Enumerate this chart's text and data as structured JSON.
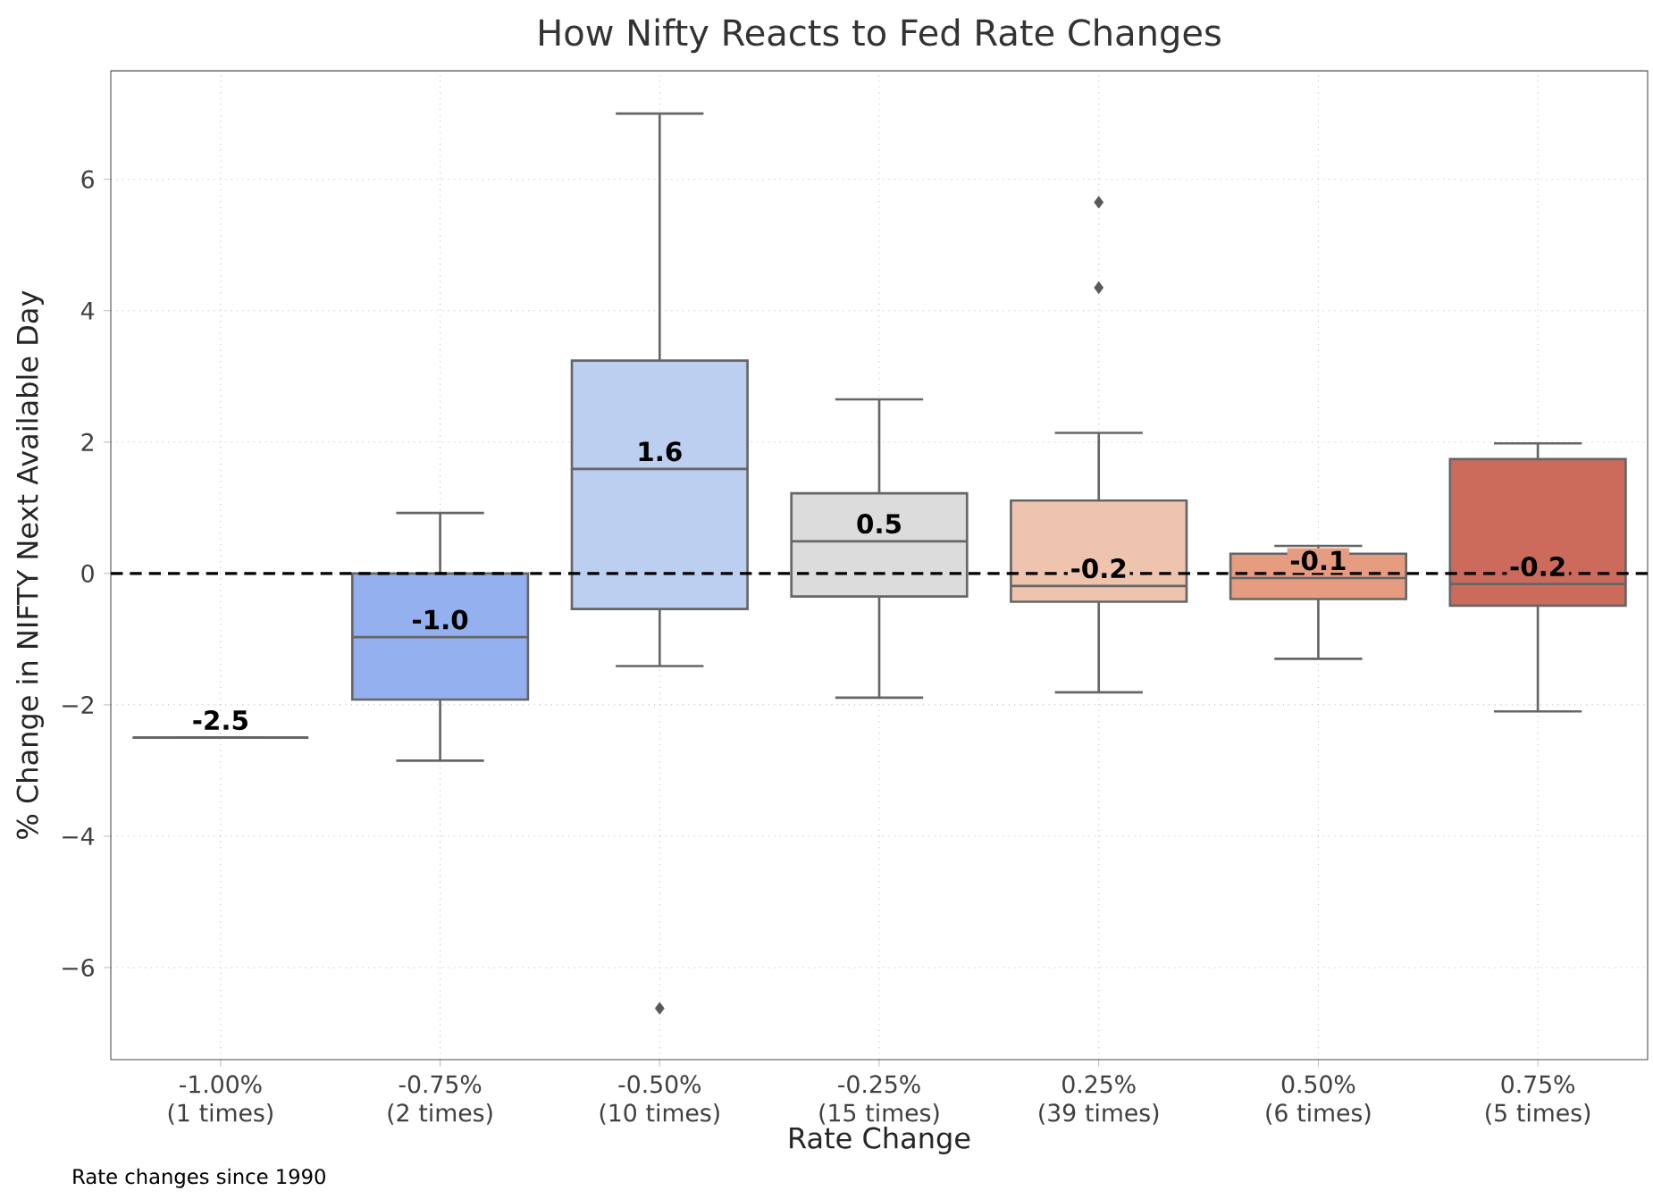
{
  "chart_data": {
    "type": "box",
    "title": "How Nifty Reacts to Fed Rate Changes",
    "xlabel": "Rate Change",
    "ylabel": "% Change in NIFTY Next Available Day",
    "categories": [
      "-1.00% (1 times)",
      "-0.75% (2 times)",
      "-0.50% (10 times)",
      "-0.25% (15 times)",
      "0.25% (39 times)",
      "0.50% (6 times)",
      "0.75% (5 times)"
    ],
    "colors": [
      "#666666",
      "#95b0ef",
      "#bccff0",
      "#dcdcdc",
      "#efc4ae",
      "#e59c80",
      "#cc6b5b"
    ],
    "boxes": [
      {
        "low": -2.5,
        "q1": -2.5,
        "median": -2.5,
        "q3": -2.5,
        "high": -2.5
      },
      {
        "low": -2.85,
        "q1": -1.92,
        "median": -0.97,
        "q3": 0.0,
        "high": 0.92
      },
      {
        "low": -1.41,
        "q1": -0.54,
        "median": 1.59,
        "q3": 3.24,
        "high": 7.0,
        "outliers": [
          -6.62
        ]
      },
      {
        "low": -1.89,
        "q1": -0.35,
        "median": 0.49,
        "q3": 1.22,
        "high": 2.65
      },
      {
        "low": -1.81,
        "q1": -0.43,
        "median": -0.19,
        "q3": 1.11,
        "high": 2.14,
        "outliers": [
          5.65,
          4.35
        ]
      },
      {
        "low": -1.3,
        "q1": -0.39,
        "median": -0.07,
        "q3": 0.3,
        "high": 0.42
      },
      {
        "low": -2.1,
        "q1": -0.49,
        "median": -0.16,
        "q3": 1.74,
        "high": 1.98
      }
    ],
    "ylim": [
      -7.4,
      7.65
    ],
    "yticks": [
      {
        "value": -6,
        "label": "−6"
      },
      {
        "value": -4,
        "label": "−4"
      },
      {
        "value": -2,
        "label": "−2"
      },
      0,
      2,
      4,
      6
    ],
    "grid": true,
    "marker": "diamond",
    "ref_lines": [
      {
        "axis": "y",
        "value": 0,
        "color": "#000000",
        "line_style": "dashed"
      }
    ],
    "annotations": [
      "-2.5",
      "-1.0",
      "1.6",
      "0.5",
      "-0.2",
      "-0.1",
      "-0.2",
      "Rate changes since 1990"
    ]
  }
}
